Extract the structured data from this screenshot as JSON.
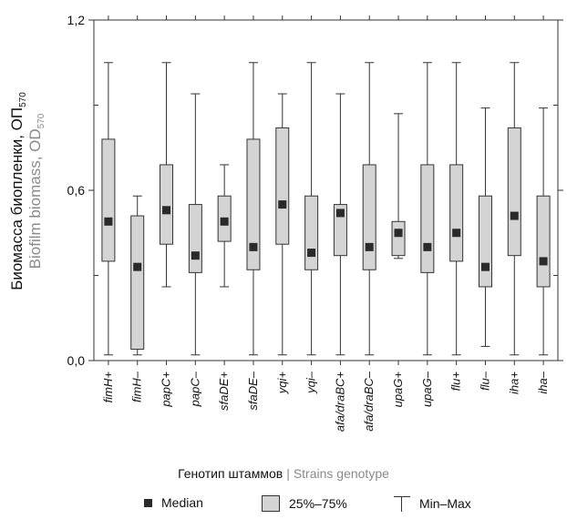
{
  "chart_data": {
    "type": "boxplot",
    "ylabel_ru": "Биомасса биопленки, ОП",
    "ylabel_ru_sub": "570",
    "ylabel_en": "Biofilm biomass, OD",
    "ylabel_en_sub": "570",
    "xlabel_ru": "Генотип штаммов",
    "xlabel_en": "Strains genotype",
    "xlabel_sep": "|",
    "ylim": [
      0,
      1.2
    ],
    "yticks": [
      {
        "value": 0.0,
        "label": "0,0"
      },
      {
        "value": 0.6,
        "label": "0,6"
      },
      {
        "value": 1.2,
        "label": "1,2"
      }
    ],
    "yminor": [
      0.3,
      0.9
    ],
    "categories": [
      "fimH+",
      "fimH–",
      "papC+",
      "papC–",
      "sfaDE+",
      "sfaDE–",
      "yqi+",
      "yqi–",
      "afa/draBC+",
      "afa/draBC–",
      "upaG+",
      "upaG–",
      "flu+",
      "flu–",
      "iha+",
      "iha–"
    ],
    "series": [
      {
        "min": 0.02,
        "q1": 0.35,
        "median": 0.49,
        "q3": 0.78,
        "max": 1.05
      },
      {
        "min": 0.02,
        "q1": 0.04,
        "median": 0.33,
        "q3": 0.51,
        "max": 0.58
      },
      {
        "min": 0.26,
        "q1": 0.41,
        "median": 0.53,
        "q3": 0.69,
        "max": 1.05
      },
      {
        "min": 0.02,
        "q1": 0.31,
        "median": 0.37,
        "q3": 0.55,
        "max": 0.94
      },
      {
        "min": 0.26,
        "q1": 0.42,
        "median": 0.49,
        "q3": 0.58,
        "max": 0.69
      },
      {
        "min": 0.02,
        "q1": 0.32,
        "median": 0.4,
        "q3": 0.78,
        "max": 1.05
      },
      {
        "min": 0.02,
        "q1": 0.41,
        "median": 0.55,
        "q3": 0.82,
        "max": 0.94
      },
      {
        "min": 0.02,
        "q1": 0.32,
        "median": 0.38,
        "q3": 0.58,
        "max": 1.05
      },
      {
        "min": 0.02,
        "q1": 0.37,
        "median": 0.52,
        "q3": 0.55,
        "max": 0.94
      },
      {
        "min": 0.02,
        "q1": 0.32,
        "median": 0.4,
        "q3": 0.69,
        "max": 1.05
      },
      {
        "min": 0.36,
        "q1": 0.37,
        "median": 0.45,
        "q3": 0.49,
        "max": 0.87
      },
      {
        "min": 0.02,
        "q1": 0.31,
        "median": 0.4,
        "q3": 0.69,
        "max": 1.05
      },
      {
        "min": 0.02,
        "q1": 0.35,
        "median": 0.45,
        "q3": 0.69,
        "max": 1.05
      },
      {
        "min": 0.05,
        "q1": 0.26,
        "median": 0.33,
        "q3": 0.58,
        "max": 0.89
      },
      {
        "min": 0.02,
        "q1": 0.37,
        "median": 0.51,
        "q3": 0.82,
        "max": 1.05
      },
      {
        "min": 0.02,
        "q1": 0.26,
        "median": 0.35,
        "q3": 0.58,
        "max": 0.89
      }
    ],
    "legend": {
      "median": "Median",
      "iqr": "25%–75%",
      "range": "Min–Max"
    },
    "colors": {
      "box_fill": "#d4d4d4",
      "stroke": "#333333",
      "median": "#2a2a2a"
    }
  }
}
